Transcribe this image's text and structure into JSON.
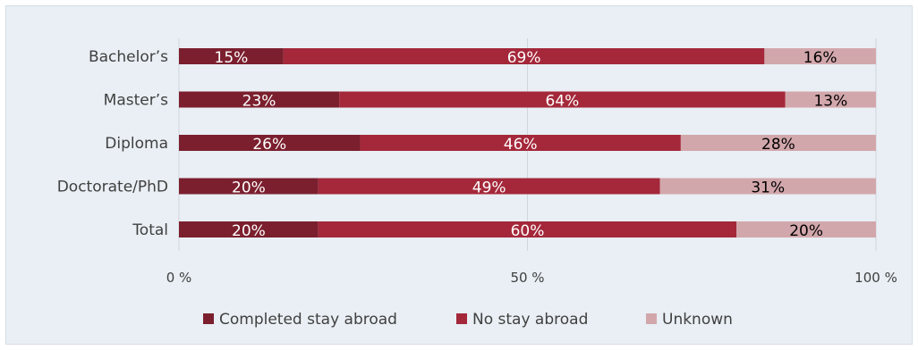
{
  "chart_data": {
    "type": "bar",
    "orientation": "horizontal",
    "stacked": "percent",
    "categories": [
      "Bachelor’s",
      "Master’s",
      "Diploma",
      "Doctorate/PhD",
      "Total"
    ],
    "series": [
      {
        "name": "Completed stay abroad",
        "values": [
          15,
          23,
          26,
          20,
          20
        ],
        "color": "#7b1f2e",
        "label_color": "#ffffff"
      },
      {
        "name": "No stay abroad",
        "values": [
          69,
          64,
          46,
          49,
          60
        ],
        "color": "#a4283a",
        "label_color": "#ffffff"
      },
      {
        "name": "Unknown",
        "values": [
          16,
          13,
          28,
          31,
          20
        ],
        "color": "#d2a7ac",
        "label_color": "#000000"
      }
    ],
    "value_suffix": "%",
    "x_ticks": [
      "0 %",
      "50 %",
      "100 %"
    ],
    "xlim": [
      0,
      100
    ],
    "grid": true,
    "legend_position": "bottom"
  }
}
